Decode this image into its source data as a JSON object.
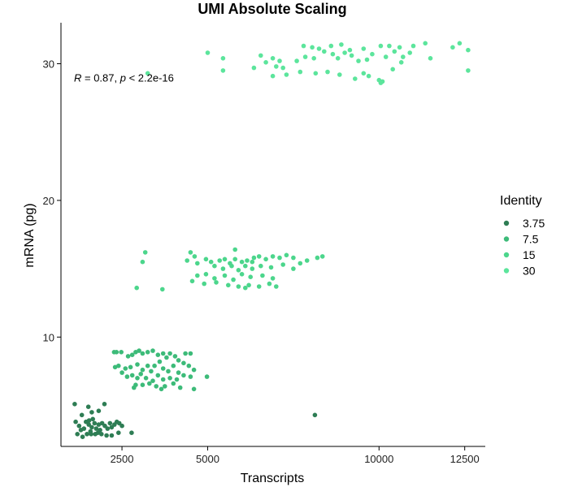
{
  "chart_data": {
    "type": "scatter",
    "title": "UMI Absolute Scaling",
    "xlabel": "Transcripts",
    "ylabel": "mRNA (pg)",
    "xlim": [
      720,
      13100
    ],
    "ylim": [
      2,
      33
    ],
    "x_ticks": [
      2500,
      5000,
      10000,
      12500
    ],
    "x_tick_labels": [
      "2500",
      "5000",
      "10000",
      "12500"
    ],
    "y_ticks": [
      10,
      20,
      30
    ],
    "y_tick_labels": [
      "10",
      "20",
      "30"
    ],
    "grid": false,
    "legend": {
      "title": "Identity",
      "position": "right"
    },
    "annotation": {
      "R_label": "R",
      "R_value": " = 0.87, ",
      "p_label": "p",
      "p_value": " < 2.2e-16",
      "x": 1100,
      "y": 29
    },
    "series": [
      {
        "name": "3.75",
        "color": "#2e7d54",
        "points": [
          [
            1120,
            5.1
          ],
          [
            1520,
            4.9
          ],
          [
            1820,
            4.6
          ],
          [
            1990,
            5.1
          ],
          [
            1330,
            4.3
          ],
          [
            1620,
            4.5
          ],
          [
            1150,
            3.8
          ],
          [
            1250,
            3.5
          ],
          [
            1390,
            3.3
          ],
          [
            1450,
            3.8
          ],
          [
            1530,
            3.6
          ],
          [
            1580,
            3.1
          ],
          [
            1620,
            3.4
          ],
          [
            1700,
            3.7
          ],
          [
            1750,
            3.3
          ],
          [
            1820,
            3.6
          ],
          [
            1860,
            3.2
          ],
          [
            1920,
            3.7
          ],
          [
            2000,
            3.5
          ],
          [
            2080,
            3.3
          ],
          [
            2150,
            3.7
          ],
          [
            2200,
            3.4
          ],
          [
            2280,
            3.6
          ],
          [
            2350,
            3.8
          ],
          [
            2420,
            3.7
          ],
          [
            2500,
            3.5
          ],
          [
            1540,
            3.9
          ],
          [
            1650,
            4.0
          ],
          [
            1200,
            2.9
          ],
          [
            1350,
            2.7
          ],
          [
            1480,
            2.9
          ],
          [
            1600,
            2.9
          ],
          [
            1720,
            2.9
          ],
          [
            1900,
            2.9
          ],
          [
            2050,
            2.8
          ],
          [
            2200,
            2.8
          ],
          [
            2400,
            3.0
          ],
          [
            2780,
            3.0
          ],
          [
            1300,
            3.2
          ],
          [
            1800,
            3.0
          ],
          [
            8130,
            4.3
          ]
        ]
      },
      {
        "name": "7.5",
        "color": "#3dbb79",
        "points": [
          [
            2270,
            8.9
          ],
          [
            2340,
            8.9
          ],
          [
            2480,
            8.9
          ],
          [
            2680,
            8.6
          ],
          [
            2800,
            8.7
          ],
          [
            2900,
            8.9
          ],
          [
            3000,
            9.0
          ],
          [
            3100,
            8.8
          ],
          [
            3250,
            8.9
          ],
          [
            3400,
            9.0
          ],
          [
            3550,
            8.7
          ],
          [
            3700,
            8.8
          ],
          [
            3800,
            8.5
          ],
          [
            3900,
            8.8
          ],
          [
            4050,
            8.6
          ],
          [
            4150,
            8.3
          ],
          [
            4350,
            8.8
          ],
          [
            4500,
            8.8
          ],
          [
            2300,
            7.8
          ],
          [
            2400,
            7.9
          ],
          [
            2600,
            7.7
          ],
          [
            2750,
            7.8
          ],
          [
            2950,
            8.0
          ],
          [
            3100,
            7.6
          ],
          [
            3250,
            7.9
          ],
          [
            3350,
            7.5
          ],
          [
            3450,
            7.9
          ],
          [
            3600,
            8.2
          ],
          [
            3700,
            7.7
          ],
          [
            3850,
            7.5
          ],
          [
            4000,
            7.9
          ],
          [
            4150,
            7.4
          ],
          [
            4300,
            8.1
          ],
          [
            4450,
            7.9
          ],
          [
            4600,
            7.6
          ],
          [
            2500,
            7.4
          ],
          [
            2650,
            7.1
          ],
          [
            2800,
            7.2
          ],
          [
            2950,
            7.0
          ],
          [
            3050,
            7.3
          ],
          [
            3200,
            7.0
          ],
          [
            3400,
            6.8
          ],
          [
            3550,
            7.2
          ],
          [
            3700,
            6.9
          ],
          [
            3900,
            7.0
          ],
          [
            4100,
            6.9
          ],
          [
            4300,
            7.2
          ],
          [
            4500,
            7.1
          ],
          [
            2900,
            6.5
          ],
          [
            3100,
            6.5
          ],
          [
            3300,
            6.6
          ],
          [
            3500,
            6.4
          ],
          [
            3750,
            6.4
          ],
          [
            4000,
            6.6
          ],
          [
            4200,
            6.3
          ],
          [
            2850,
            6.3
          ],
          [
            3650,
            6.2
          ],
          [
            4600,
            6.2
          ],
          [
            4980,
            7.1
          ]
        ]
      },
      {
        "name": "15",
        "color": "#4cd68c",
        "points": [
          [
            3180,
            16.2
          ],
          [
            4500,
            16.2
          ],
          [
            5800,
            16.4
          ],
          [
            4620,
            15.9
          ],
          [
            3100,
            15.5
          ],
          [
            4400,
            15.6
          ],
          [
            4700,
            15.4
          ],
          [
            4950,
            15.7
          ],
          [
            5100,
            15.5
          ],
          [
            5350,
            15.6
          ],
          [
            5500,
            15.7
          ],
          [
            5650,
            15.4
          ],
          [
            5800,
            15.7
          ],
          [
            6000,
            15.5
          ],
          [
            6150,
            15.6
          ],
          [
            6350,
            15.8
          ],
          [
            6500,
            15.9
          ],
          [
            6700,
            15.7
          ],
          [
            6900,
            15.9
          ],
          [
            7100,
            15.8
          ],
          [
            7300,
            16.0
          ],
          [
            7500,
            15.8
          ],
          [
            7700,
            15.4
          ],
          [
            8200,
            15.8
          ],
          [
            8350,
            15.9
          ],
          [
            5200,
            15.2
          ],
          [
            5450,
            15.0
          ],
          [
            5700,
            15.2
          ],
          [
            5900,
            14.9
          ],
          [
            6100,
            15.2
          ],
          [
            6300,
            15.0
          ],
          [
            6550,
            15.2
          ],
          [
            6850,
            15.1
          ],
          [
            7200,
            15.3
          ],
          [
            7500,
            15.0
          ],
          [
            4700,
            14.5
          ],
          [
            4950,
            14.6
          ],
          [
            5200,
            14.3
          ],
          [
            5500,
            14.5
          ],
          [
            5750,
            14.2
          ],
          [
            6000,
            14.6
          ],
          [
            6250,
            14.4
          ],
          [
            6600,
            14.5
          ],
          [
            6900,
            14.3
          ],
          [
            4550,
            14.1
          ],
          [
            4900,
            13.9
          ],
          [
            5250,
            14.0
          ],
          [
            5600,
            13.8
          ],
          [
            5900,
            13.7
          ],
          [
            6200,
            13.8
          ],
          [
            6500,
            13.7
          ],
          [
            6800,
            13.9
          ],
          [
            7000,
            13.7
          ],
          [
            2930,
            13.6
          ],
          [
            3680,
            13.5
          ],
          [
            6100,
            13.6
          ],
          [
            7900,
            15.6
          ],
          [
            6300,
            15.5
          ]
        ]
      },
      {
        "name": "30",
        "color": "#5ce59c",
        "points": [
          [
            5000,
            30.8
          ],
          [
            5450,
            30.4
          ],
          [
            6550,
            30.6
          ],
          [
            6900,
            30.4
          ],
          [
            7100,
            30.2
          ],
          [
            7800,
            31.3
          ],
          [
            8050,
            31.2
          ],
          [
            8250,
            31.1
          ],
          [
            8600,
            31.3
          ],
          [
            8900,
            31.4
          ],
          [
            9150,
            31.0
          ],
          [
            9550,
            31.1
          ],
          [
            10050,
            31.3
          ],
          [
            10300,
            31.3
          ],
          [
            10600,
            31.2
          ],
          [
            11000,
            31.3
          ],
          [
            11350,
            31.5
          ],
          [
            12150,
            31.2
          ],
          [
            12350,
            31.5
          ],
          [
            12600,
            31.0
          ],
          [
            6700,
            30.1
          ],
          [
            7000,
            29.8
          ],
          [
            7200,
            29.7
          ],
          [
            7600,
            30.2
          ],
          [
            7850,
            30.5
          ],
          [
            8100,
            30.4
          ],
          [
            8400,
            30.9
          ],
          [
            8650,
            30.7
          ],
          [
            8800,
            30.4
          ],
          [
            9000,
            30.8
          ],
          [
            9200,
            30.6
          ],
          [
            9400,
            30.2
          ],
          [
            9650,
            30.3
          ],
          [
            9800,
            30.7
          ],
          [
            10200,
            30.5
          ],
          [
            10450,
            30.9
          ],
          [
            10700,
            30.5
          ],
          [
            10900,
            30.8
          ],
          [
            11500,
            30.4
          ],
          [
            10650,
            30.1
          ],
          [
            7300,
            29.2
          ],
          [
            7700,
            29.4
          ],
          [
            8150,
            29.3
          ],
          [
            8500,
            29.4
          ],
          [
            8850,
            29.2
          ],
          [
            9300,
            28.9
          ],
          [
            9550,
            29.3
          ],
          [
            9700,
            29.1
          ],
          [
            10000,
            28.8
          ],
          [
            10050,
            28.6
          ],
          [
            10100,
            28.7
          ],
          [
            10400,
            29.6
          ],
          [
            6900,
            29.1
          ],
          [
            5450,
            29.5
          ],
          [
            3250,
            29.3
          ],
          [
            12600,
            29.5
          ],
          [
            6350,
            29.7
          ]
        ]
      }
    ]
  }
}
